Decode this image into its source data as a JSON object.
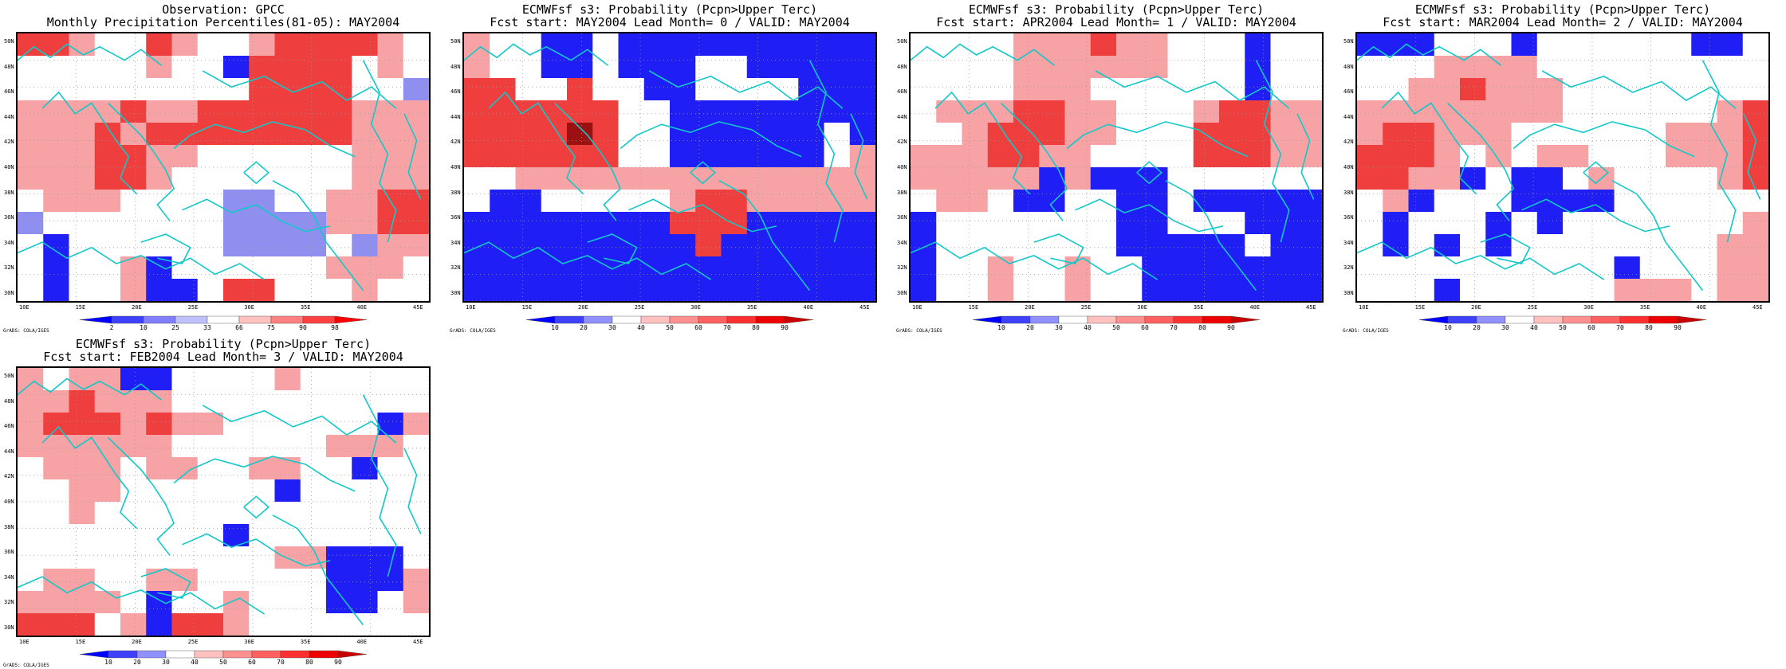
{
  "panels": [
    {
      "title_line1": "Observation: GPCC",
      "title_line2": "Monthly Precipitation Percentiles(81-05): MAY2004",
      "legend": "obs",
      "grid": [
        "RRLWWRLWWLRRRRLW",
        "WWWWWLWWBRRRRWLW",
        "WWWWWWWWWRRRRWWS",
        "LLLLRLLRRRRRRLLL",
        "LLLRLRRRRRRRRLLL",
        "LLLRRLLWWWWWWLLL",
        "LLLRRLWWWWWWWLLL",
        "WLLLWWWWSSWWLLRR",
        "SWWWWWWWSSSSLLRR",
        "WBWWWWWWSSSSWSLL",
        "WBWWLBWWWWWWLLLW",
        "WBWWLBBWRRWWWLWW"
      ]
    },
    {
      "title_line1": "ECMWFsf s3: Probability (Pcpn>Upper Terc)",
      "title_line2": "Fcst start: MAY2004  Lead Month= 0 / VALID: MAY2004",
      "legend": "prob",
      "grid": [
        "LWWBBWBBBBBBBBBB",
        "LWWBBWBBBWWBBBBB",
        "RRWWRWWBBWWWWBBB",
        "RRRRRRWWBBBBBBBB",
        "RRRRDRWWBBBBBBWB",
        "RRRRRRWWBBBBBBWL",
        "WWLLLLLLLLLLLLLL",
        "WBBWWWWWLRRLLLLL",
        "BBBBBBBBRRRBBBBB",
        "BBBBBBBBBRBBBBBB",
        "BBBBBBBBBBBBBBBB",
        "BBBBBBBBBBBBBBBB"
      ]
    },
    {
      "title_line1": "ECMWFsf s3: Probability (Pcpn>Upper Terc)",
      "title_line2": "Fcst start: APR2004  Lead Month= 1 / VALID: MAY2004",
      "legend": "prob",
      "grid": [
        "WWWWLLLRLLWWWBWW",
        "WWWWLLLLLLWWWBWW",
        "WWWWLLLWWWWWWBWW",
        "WLLLRRLLWWWLRRLL",
        "WWLRRRLLWWWRRRLL",
        "LLLRRLLWWWWRRRLL",
        "LLLLLBLBBBWWWWWW",
        "WLLWBBWWBBWBBBBB",
        "BWWWWWWWBBWWWBBB",
        "BWWWWWWWBBBBBWBB",
        "BWWLWWLWWBBBBBBB",
        "BWWLWWLWWBBBBBBB"
      ]
    },
    {
      "title_line1": "ECMWFsf s3: Probability (Pcpn>Upper Terc)",
      "title_line2": "Fcst start: MAR2004  Lead Month= 2 / VALID: MAY2004",
      "legend": "prob",
      "grid": [
        "BBBWWWBWWWWWWBBW",
        "WWWLLLLWWWWWWWWW",
        "WWLLRLLLWWWWWWWW",
        "LLLLLLLLWWWWWWLR",
        "LRRLLLWWWWWWLLLR",
        "RRRLWLWLLWWWLLLR",
        "RRLLBWBBWLWWWWLR",
        "WLBWWWBBBBWWWWWW",
        "WBWWWBWBWWWWWWWL",
        "WBWBWBWWWWWWWWLL",
        "WWWWWWWWWWBWWWLL",
        "WWWBWWWWWWLLLWLL"
      ]
    },
    {
      "title_line1": "ECMWFsf s3: Probability (Pcpn>Upper Terc)",
      "title_line2": "Fcst start: FEB2004  Lead Month= 3 / VALID: MAY2004",
      "legend": "prob",
      "grid": [
        "LWLLBBWWWWLWWWWW",
        "LLRLLLWWWWWWWWWW",
        "LRRRLRLLWWWWWWBL",
        "LLLLLLWWWWWWLLLW",
        "WLLLWLLWWLLWWBWW",
        "WWLLWWWWWWBWWWWW",
        "WWLWWWWWWWWWWWWW",
        "WWWWWWWWBWWWWWWW",
        "WWWWWWWWWWLLBBBW",
        "WLLWWLLWWWWWBBBL",
        "LLLLWBWWLWWWBBWL",
        "RRRWLBRRLWWWWWWW"
      ]
    }
  ],
  "lat_labels": [
    "50N",
    "48N",
    "46N",
    "44N",
    "42N",
    "40N",
    "38N",
    "36N",
    "34N",
    "32N",
    "30N"
  ],
  "lon_labels": [
    "10E",
    "15E",
    "20E",
    "25E",
    "30E",
    "35E",
    "40E",
    "45E"
  ],
  "legends": {
    "obs": {
      "labels": [
        "2",
        "10",
        "25",
        "33",
        "66",
        "75",
        "90",
        "98"
      ],
      "colors": [
        "#0000ff",
        "#4040ff",
        "#8080ff",
        "#c0c0ff",
        "#ffffff",
        "#ffc0c0",
        "#ff8080",
        "#ff4040",
        "#ff0000"
      ]
    },
    "prob": {
      "labels": [
        "10",
        "20",
        "30",
        "40",
        "50",
        "60",
        "70",
        "80",
        "90"
      ],
      "colors": [
        "#0000ff",
        "#4040ff",
        "#9090ff",
        "#ffffff",
        "#ffc0c0",
        "#ff9090",
        "#ff6060",
        "#ff3030",
        "#ee0000",
        "#c80000"
      ]
    }
  },
  "cell_colors": {
    "B": "#1e1ef5",
    "S": "#8f8ff0",
    "W": "#ffffff",
    "L": "#f7a3a5",
    "R": "#ef3e3e",
    "D": "#9b1010"
  },
  "coastline_color": "#11c8c8",
  "credit": "GrADS: COLA/IGES"
}
